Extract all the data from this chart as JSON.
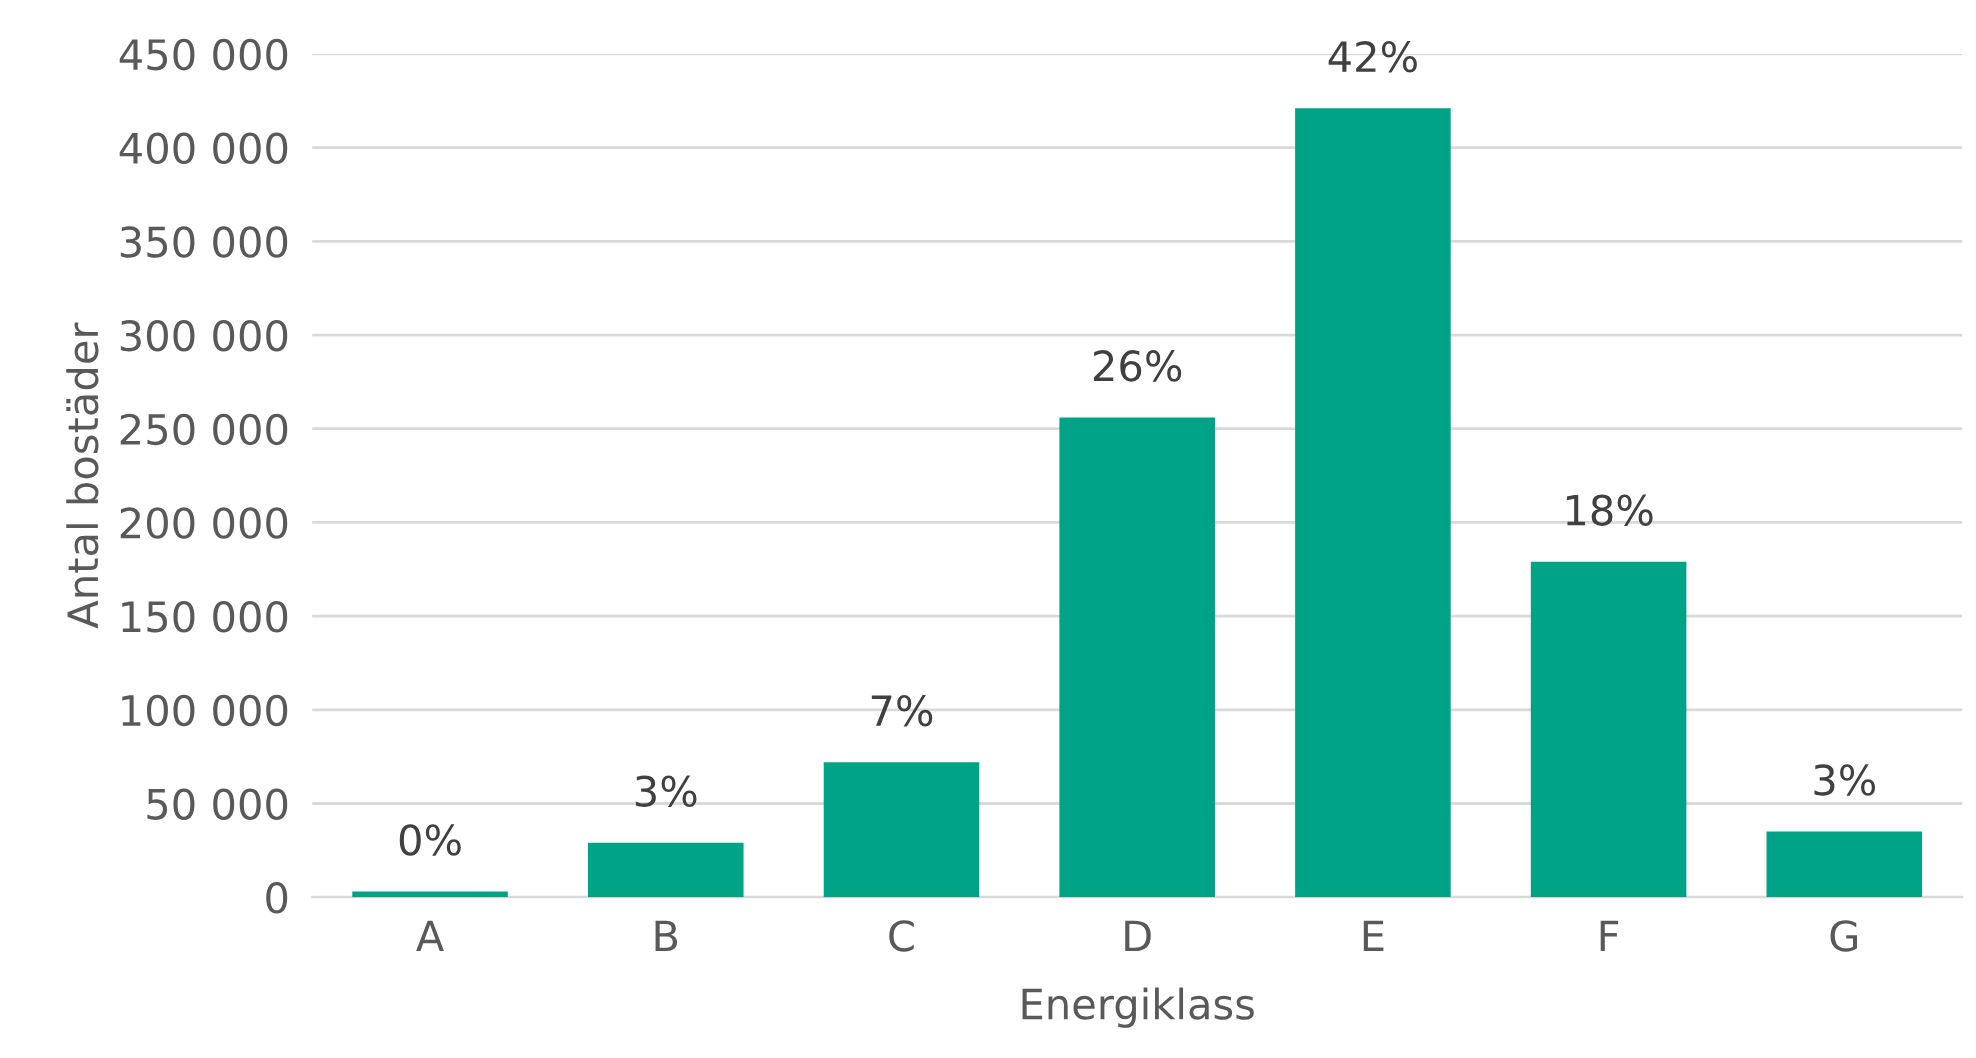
{
  "chart_data": {
    "type": "bar",
    "xlabel": "Energiklass",
    "ylabel": "Antal bostäder",
    "categories": [
      "A",
      "B",
      "C",
      "D",
      "E",
      "F",
      "G"
    ],
    "values": [
      3000,
      29000,
      72000,
      256000,
      421000,
      179000,
      35000
    ],
    "annotations": [
      {
        "text": "0%",
        "x": "A",
        "y": 3000
      },
      {
        "text": "3%",
        "x": "B",
        "y": 29000
      },
      {
        "text": "7%",
        "x": "C",
        "y": 72000
      },
      {
        "text": "26%",
        "x": "D",
        "y": 256000
      },
      {
        "text": "42%",
        "x": "E",
        "y": 421000
      },
      {
        "text": "18%",
        "x": "F",
        "y": 179000
      },
      {
        "text": "3%",
        "x": "G",
        "y": 35000
      }
    ],
    "color": "#00a385",
    "ylim": [
      0,
      450000
    ],
    "yticks": [
      0,
      {
        "value": 50000,
        "label": "50 000"
      },
      {
        "value": 100000,
        "label": "100 000"
      },
      {
        "value": 150000,
        "label": "150 000"
      },
      {
        "value": 200000,
        "label": "200 000"
      },
      {
        "value": 250000,
        "label": "250 000"
      },
      {
        "value": 300000,
        "label": "300 000"
      },
      {
        "value": 350000,
        "label": "350 000"
      },
      {
        "value": 400000,
        "label": "400 000"
      },
      {
        "value": 450000,
        "label": "450 000"
      }
    ],
    "grid": "y"
  }
}
